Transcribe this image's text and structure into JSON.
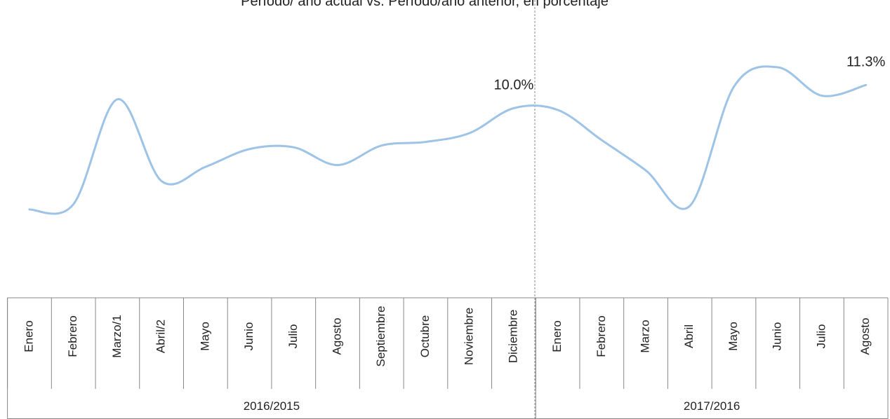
{
  "chart_data": {
    "type": "line",
    "title": "Período/ año actual vs. Período/año anterior, en porcentaje",
    "groups": [
      {
        "name": "2016/2015",
        "categories": [
          "Enero",
          "Febrero",
          "Marzo/1",
          "Abril/2",
          "Mayo",
          "Junio",
          "Julio",
          "Agosto",
          "Septiembre",
          "Octubre",
          "Noviembre",
          "Diciembre"
        ]
      },
      {
        "name": "2017/2016",
        "categories": [
          "Enero",
          "Febrero",
          "Marzo",
          "Abril",
          "Mayo",
          "Junio",
          "Julio",
          "Agosto"
        ]
      }
    ],
    "values": [
      4.3,
      4.6,
      10.5,
      5.9,
      6.7,
      7.7,
      7.8,
      6.8,
      7.9,
      8.1,
      8.6,
      10.0,
      9.9,
      8.2,
      6.5,
      4.5,
      11.2,
      12.3,
      10.7,
      11.3
    ],
    "value_labels": [
      null,
      null,
      null,
      null,
      null,
      null,
      null,
      null,
      null,
      null,
      null,
      "10.0%",
      null,
      null,
      null,
      null,
      null,
      null,
      null,
      "11.3%"
    ],
    "color": "#9dc3e6"
  }
}
